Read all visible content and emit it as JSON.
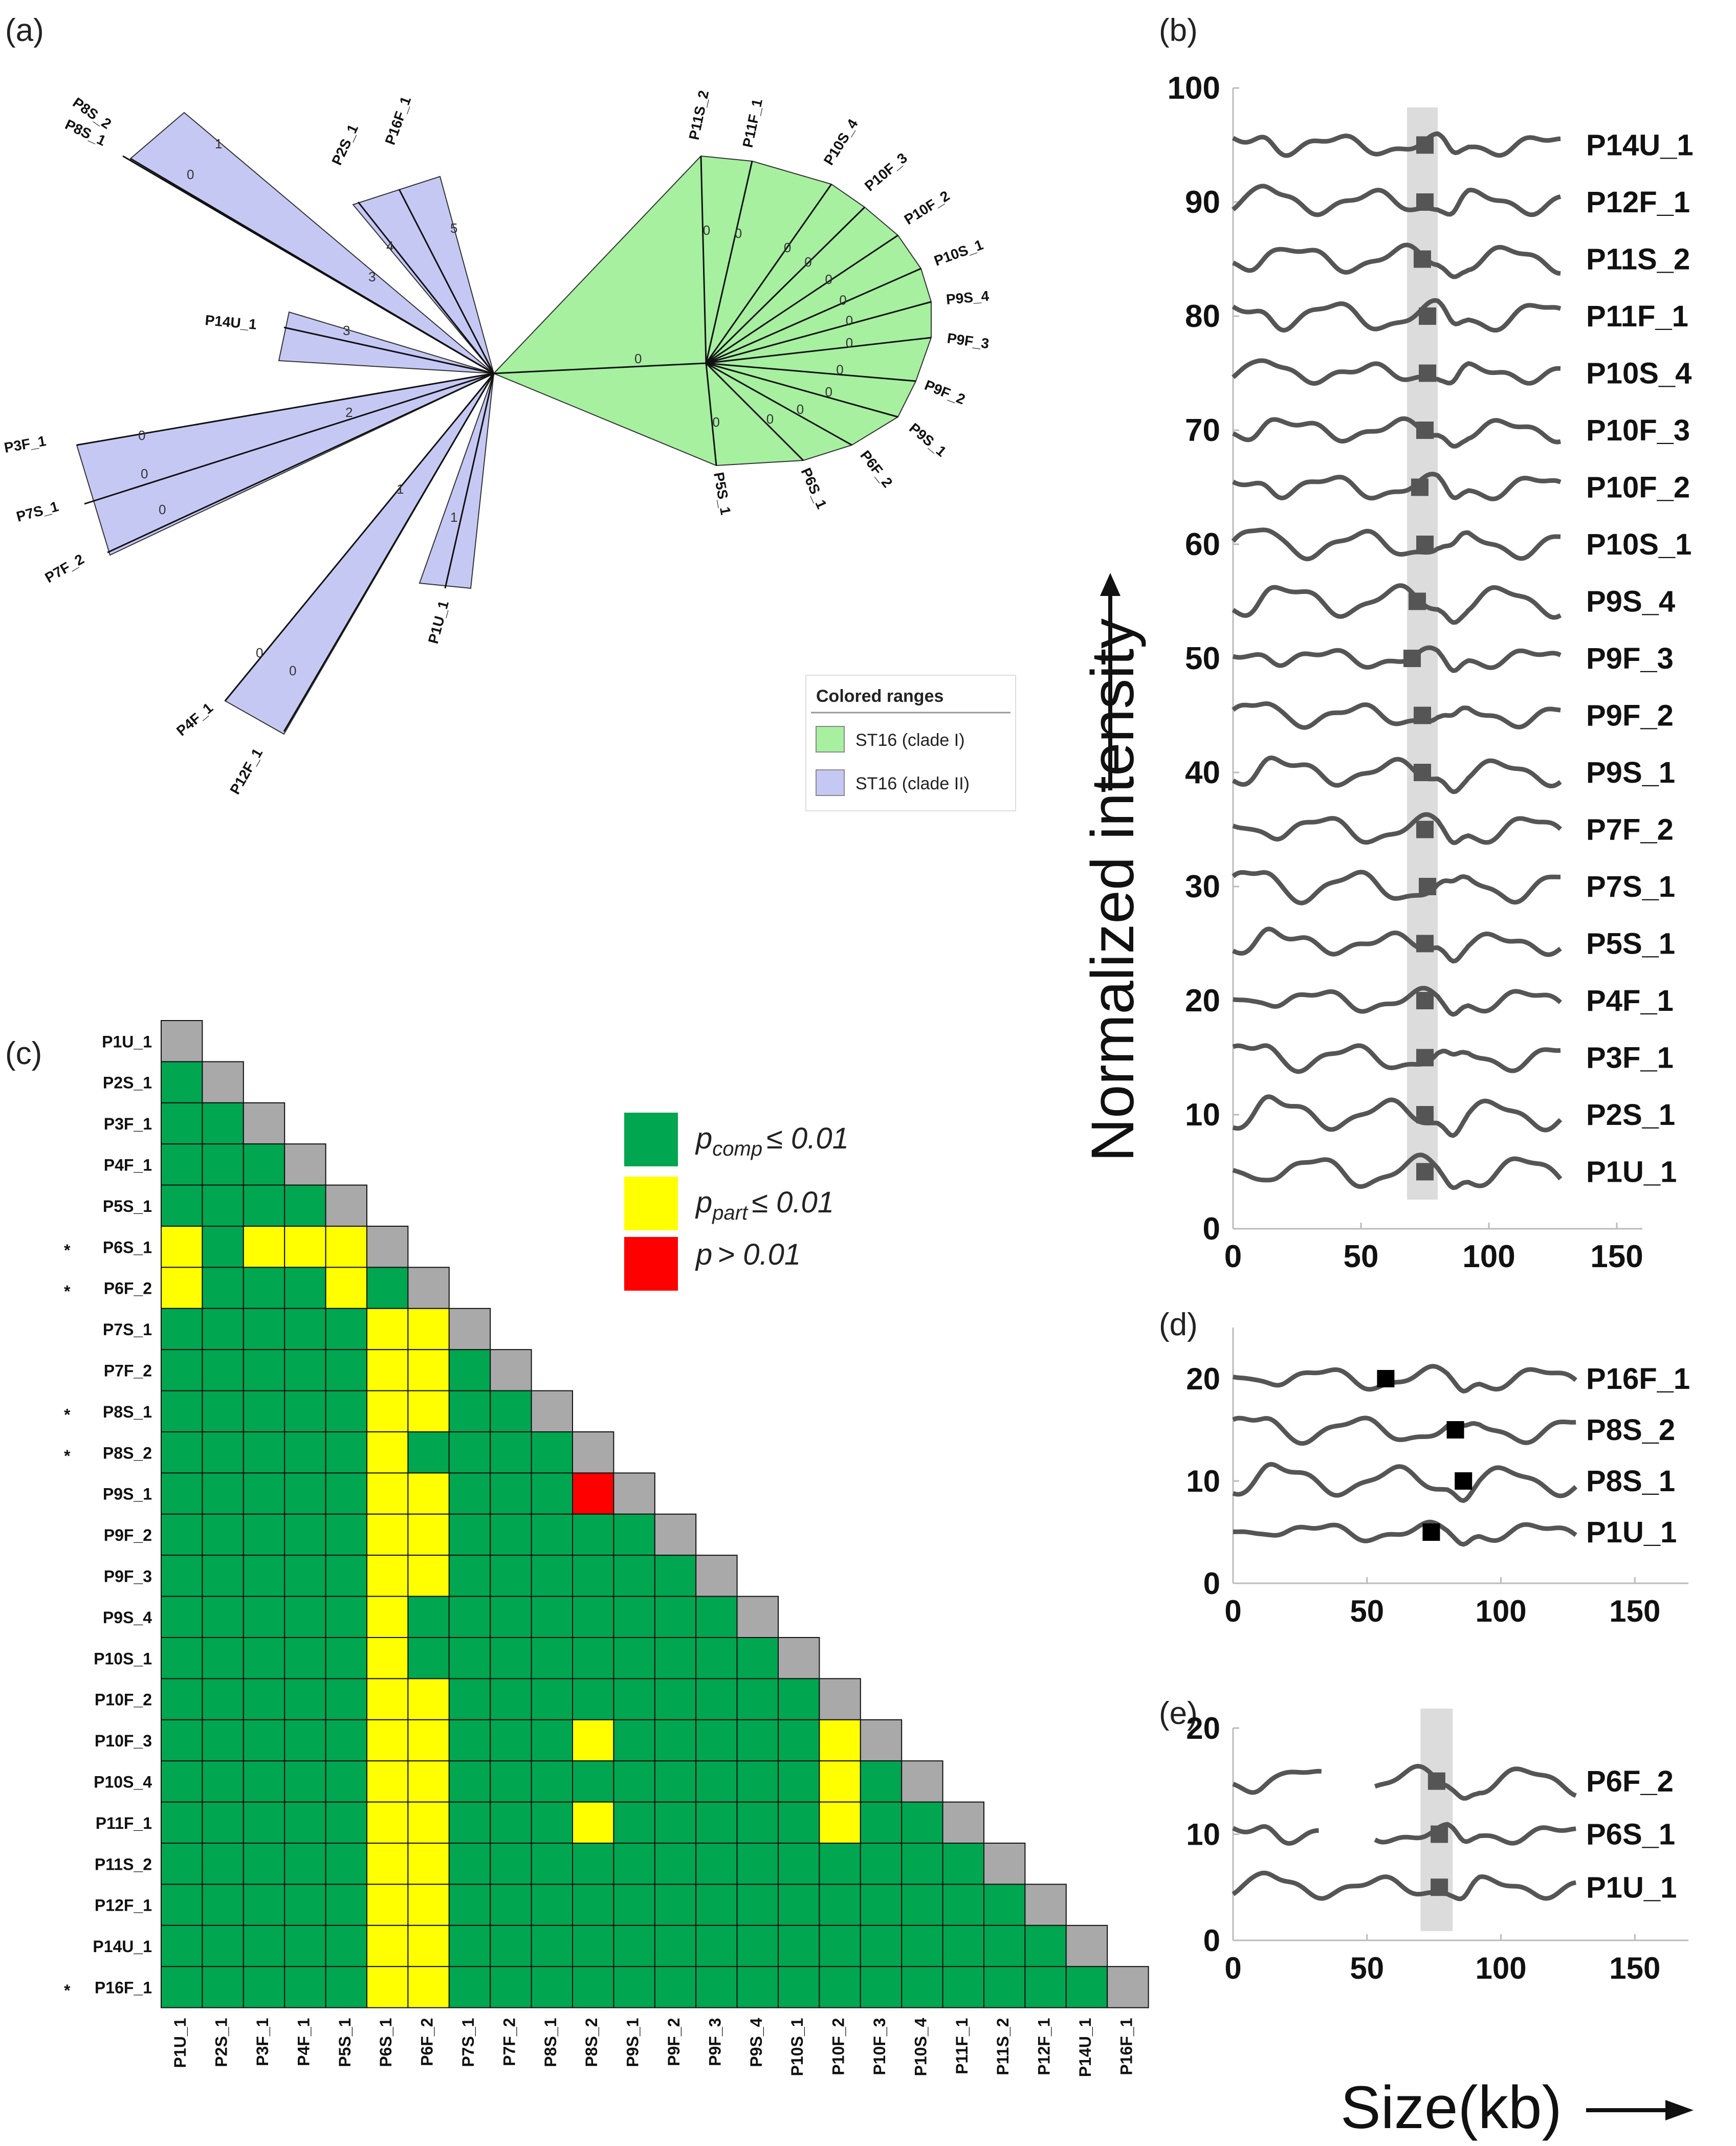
{
  "panels": {
    "a": "(a)",
    "b": "(b)",
    "c": "(c)",
    "d": "(d)",
    "e": "(e)"
  },
  "tree": {
    "legend_title": "Colored ranges",
    "legend_items": [
      {
        "label": "ST16 (clade I)",
        "color": "#a6f0a0"
      },
      {
        "label": "ST16 (clade II)",
        "color": "#c6c8f4"
      }
    ],
    "clade1_color": "#a6f0a0",
    "clade2_color": "#c6c8f4",
    "clade1_leaves": [
      "P11S_2",
      "P11F_1",
      "P10S_4",
      "P10F_3",
      "P10F_2",
      "P10S_1",
      "P9S_4",
      "P9F_3",
      "P9F_2",
      "P9S_1",
      "P6F_2",
      "P6S_1",
      "P5S_1"
    ],
    "clade2_leaves": [
      "P8S_2",
      "P8S_1",
      "P2S_1",
      "P16F_1",
      "P14U_1",
      "P3F_1",
      "P7S_1",
      "P7F_2",
      "P1U_1",
      "P4F_1",
      "P12F_1"
    ],
    "clade1_stem_label": "0",
    "clade1_branch_labels": [
      "0",
      "0",
      "0",
      "0",
      "0",
      "0",
      "0",
      "0",
      "0",
      "0",
      "0",
      "0",
      "0"
    ],
    "clade2_branch_labels": [
      "1",
      "0",
      "3",
      "4",
      "5",
      "3",
      "2",
      "0",
      "0",
      "0",
      "1",
      "1",
      "0",
      "0"
    ]
  },
  "matrix": {
    "legend": [
      {
        "text": "p",
        "sub": "comp",
        "suffix": "≤ 0.01",
        "color": "#00a650"
      },
      {
        "text": "p",
        "sub": "part",
        "suffix": "≤ 0.01",
        "color": "#ffff00"
      },
      {
        "text": "p",
        "sub": "",
        "suffix": "> 0.01",
        "color": "#ff0000"
      }
    ],
    "colors": {
      "G": "#00a650",
      "Y": "#ffff00",
      "R": "#ff0000",
      "D": "#a9a9a9"
    },
    "labels": [
      "P1U_1",
      "P2S_1",
      "P3F_1",
      "P4F_1",
      "P5S_1",
      "P6S_1",
      "P6F_2",
      "P7S_1",
      "P7F_2",
      "P8S_1",
      "P8S_2",
      "P9S_1",
      "P9F_2",
      "P9F_3",
      "P9S_4",
      "P10S_1",
      "P10F_2",
      "P10F_3",
      "P10S_4",
      "P11F_1",
      "P11S_2",
      "P12F_1",
      "P14U_1",
      "P16F_1"
    ],
    "row_stars": [
      false,
      false,
      false,
      false,
      false,
      true,
      true,
      false,
      false,
      true,
      true,
      false,
      false,
      false,
      false,
      false,
      false,
      false,
      false,
      false,
      false,
      false,
      false,
      true
    ],
    "col_stars": [
      false,
      false,
      false,
      false,
      false,
      true,
      true,
      false,
      false,
      true,
      true,
      false,
      false,
      false,
      false,
      false,
      false,
      false,
      false,
      false,
      false,
      false,
      false,
      true
    ],
    "star_symbol": "*",
    "rows": [
      "D",
      "GD",
      "GGD",
      "GGGD",
      "GGGGD",
      "YGYYYD",
      "YGGGYGD",
      "GGGGGYYD",
      "GGGGGYYGD",
      "GGGGGYYGGD",
      "GGGGGYGGGGD",
      "GGGGGYYGGGRD",
      "GGGGGYYGGGGGD",
      "GGGGGYYGGGGGGD",
      "GGGGGYGGGGGGGGD",
      "GGGGGYGGGGGGGGGD",
      "GGGGGYYGGGGGGGGGD",
      "GGGGGYYGGGYGGGGGYD",
      "GGGGGYYGGGGGGGGGYGD",
      "GGGGGYYGGGYGGGGGYGGD",
      "GGGGGYYGGGGGGGGGGGGGD",
      "GGGGGYYGGGGGGGGGGGGGGD",
      "GGGGGYYGGGGGGGGGGGGGGGD",
      "GGGGGYYGGGGGGGGGGGGGGGGD"
    ]
  },
  "chart_data": [
    {
      "type": "line",
      "panel": "b",
      "xlabel": "Size(kb)",
      "ylabel": "Normalized intensity",
      "xlim": [
        0,
        160
      ],
      "ylim": [
        0,
        100
      ],
      "xticks": [
        0,
        50,
        100,
        150
      ],
      "yticks": [
        0,
        10,
        20,
        30,
        40,
        50,
        60,
        70,
        80,
        90,
        100
      ],
      "highlight_x": [
        68,
        80
      ],
      "trace_x_range": [
        0,
        128
      ],
      "series": [
        {
          "name": "P14U_1",
          "offset": 95,
          "marker_x": 75
        },
        {
          "name": "P12F_1",
          "offset": 90,
          "marker_x": 75
        },
        {
          "name": "P11S_2",
          "offset": 85,
          "marker_x": 74
        },
        {
          "name": "P11F_1",
          "offset": 80,
          "marker_x": 76
        },
        {
          "name": "P10S_4",
          "offset": 75,
          "marker_x": 76
        },
        {
          "name": "P10F_3",
          "offset": 70,
          "marker_x": 75
        },
        {
          "name": "P10F_2",
          "offset": 65,
          "marker_x": 73
        },
        {
          "name": "P10S_1",
          "offset": 60,
          "marker_x": 75
        },
        {
          "name": "P9S_4",
          "offset": 55,
          "marker_x": 72
        },
        {
          "name": "P9F_3",
          "offset": 50,
          "marker_x": 70
        },
        {
          "name": "P9F_2",
          "offset": 45,
          "marker_x": 74
        },
        {
          "name": "P9S_1",
          "offset": 40,
          "marker_x": 74
        },
        {
          "name": "P7F_2",
          "offset": 35,
          "marker_x": 75
        },
        {
          "name": "P7S_1",
          "offset": 30,
          "marker_x": 76
        },
        {
          "name": "P5S_1",
          "offset": 25,
          "marker_x": 75
        },
        {
          "name": "P4F_1",
          "offset": 20,
          "marker_x": 75
        },
        {
          "name": "P3F_1",
          "offset": 15,
          "marker_x": 75
        },
        {
          "name": "P2S_1",
          "offset": 10,
          "marker_x": 75
        },
        {
          "name": "P1U_1",
          "offset": 5,
          "marker_x": 75
        }
      ]
    },
    {
      "type": "line",
      "panel": "d",
      "xlim": [
        0,
        170
      ],
      "ylim": [
        0,
        25
      ],
      "xticks": [
        0,
        50,
        100,
        150
      ],
      "yticks": [
        0,
        10,
        20
      ],
      "marker_color": "#000000",
      "series": [
        {
          "name": "P16F_1",
          "offset": 20,
          "marker_x": 57
        },
        {
          "name": "P8S_2",
          "offset": 15,
          "marker_x": 83
        },
        {
          "name": "P8S_1",
          "offset": 10,
          "marker_x": 86
        },
        {
          "name": "P1U_1",
          "offset": 5,
          "marker_x": 74
        }
      ]
    },
    {
      "type": "line",
      "panel": "e",
      "xlim": [
        0,
        170
      ],
      "ylim": [
        0,
        20
      ],
      "xticks": [
        0,
        50,
        100,
        150
      ],
      "yticks": [
        0,
        10,
        20
      ],
      "highlight_x": [
        70,
        82
      ],
      "series": [
        {
          "name": "P6F_2",
          "offset": 15,
          "marker_x": 76,
          "gap": [
            33,
            53
          ]
        },
        {
          "name": "P6S_1",
          "offset": 10,
          "marker_x": 77,
          "gap": [
            32,
            53
          ]
        },
        {
          "name": "P1U_1",
          "offset": 5,
          "marker_x": 77
        }
      ]
    }
  ]
}
